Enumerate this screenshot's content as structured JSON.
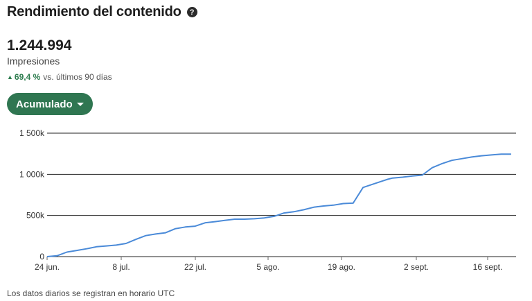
{
  "header": {
    "title": "Rendimiento del contenido",
    "help_icon": "question-circle-icon",
    "help_glyph": "?"
  },
  "metric": {
    "value": "1.244.994",
    "label": "Impresiones"
  },
  "trend": {
    "direction_icon": "triangle-up-icon",
    "arrow_glyph": "▲",
    "percent": "69,4 %",
    "period": "vs. últimos 90 días",
    "color": "#2e7d4f"
  },
  "dropdown": {
    "label": "Acumulado"
  },
  "colors": {
    "accent": "#2f7651",
    "line": "#4a8ad8",
    "grid": "#222222"
  },
  "chart_data": {
    "type": "line",
    "x_tick_labels": [
      "24 jun.",
      "8 jul.",
      "22 jul.",
      "5 ago.",
      "19 ago.",
      "2 sept.",
      "16 sept."
    ],
    "y_tick_labels": [
      "0",
      "500k",
      "1 000k",
      "1 500k"
    ],
    "ylim": [
      0,
      1500000
    ],
    "xlim": [
      0,
      95
    ],
    "series": [
      {
        "x": [
          0,
          2,
          4,
          6,
          8,
          10,
          12,
          14,
          16,
          18,
          20,
          22,
          24,
          26,
          28,
          30,
          32,
          34,
          36,
          38,
          40,
          42,
          44,
          46,
          48,
          50,
          52,
          54,
          56,
          58,
          60,
          62,
          64,
          66,
          68,
          69,
          70,
          72,
          74,
          76,
          78,
          80,
          82,
          84,
          86,
          88,
          90,
          92,
          94
        ],
        "y": [
          0,
          10000,
          55000,
          75000,
          95000,
          120000,
          130000,
          140000,
          160000,
          210000,
          255000,
          275000,
          290000,
          340000,
          360000,
          370000,
          410000,
          425000,
          440000,
          455000,
          455000,
          460000,
          470000,
          490000,
          530000,
          545000,
          570000,
          600000,
          615000,
          625000,
          645000,
          650000,
          840000,
          880000,
          920000,
          940000,
          955000,
          965000,
          980000,
          990000,
          1080000,
          1130000,
          1170000,
          1190000,
          1210000,
          1225000,
          1235000,
          1245000,
          1245000
        ]
      }
    ]
  },
  "footer": {
    "note": "Los datos diarios se registran en horario UTC"
  }
}
